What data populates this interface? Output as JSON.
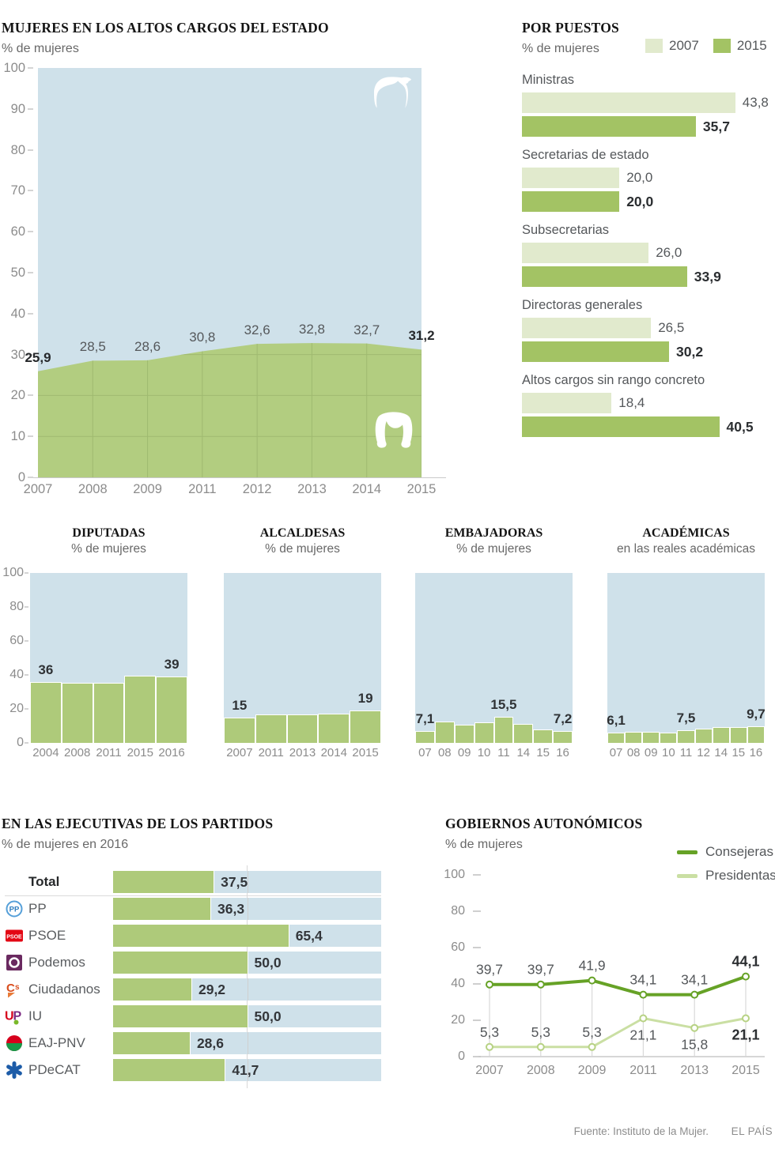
{
  "chart_data": [
    {
      "id": "altos_cargos",
      "type": "area",
      "title": "MUJERES EN LOS ALTOS CARGOS DEL ESTADO",
      "subtitle": "% de mujeres",
      "categories": [
        "2007",
        "2008",
        "2009",
        "2011",
        "2012",
        "2013",
        "2014",
        "2015"
      ],
      "values": [
        25.9,
        28.5,
        28.6,
        30.8,
        32.6,
        32.8,
        32.7,
        31.2
      ],
      "labels": [
        "25,9",
        "28,5",
        "28,6",
        "30,8",
        "32,6",
        "32,8",
        "32,7",
        "31,2"
      ],
      "bold_labels": [
        0,
        7
      ],
      "ylim": [
        0,
        100
      ],
      "yticks": [
        0,
        10,
        20,
        30,
        40,
        50,
        60,
        70,
        80,
        90,
        100
      ],
      "grid": true
    },
    {
      "id": "por_puestos",
      "type": "bar",
      "title": "POR PUESTOS",
      "subtitle": "% de mujeres",
      "legend": [
        {
          "label": "2007",
          "color": "#e1eacd"
        },
        {
          "label": "2015",
          "color": "#a3c364"
        }
      ],
      "categories": [
        "Ministras",
        "Secretarias de estado",
        "Subsecretarias",
        "Directoras generales",
        "Altos cargos sin rango concreto"
      ],
      "series": [
        {
          "name": "2007",
          "values": [
            43.8,
            20.0,
            26.0,
            26.5,
            18.4
          ],
          "labels": [
            "43,8",
            "20,0",
            "26,0",
            "26,5",
            "18,4"
          ]
        },
        {
          "name": "2015",
          "values": [
            35.7,
            20.0,
            33.9,
            30.2,
            40.5
          ],
          "labels": [
            "35,7",
            "20,0",
            "33,9",
            "30,2",
            "40,5"
          ]
        }
      ]
    },
    {
      "id": "diputadas",
      "type": "bar",
      "title": "DIPUTADAS",
      "subtitle": "% de mujeres",
      "categories": [
        "2004",
        "2008",
        "2011",
        "2015",
        "2016"
      ],
      "values": [
        36,
        35.5,
        35.3,
        39.5,
        39
      ],
      "value_labels": [
        {
          "i": 0,
          "text": "36"
        },
        {
          "i": 4,
          "text": "39"
        }
      ],
      "ylim": [
        0,
        100
      ],
      "yticks": [
        0,
        20,
        40,
        60,
        80,
        100
      ],
      "show_y_axis": true
    },
    {
      "id": "alcaldesas",
      "type": "bar",
      "title": "ALCALDESAS",
      "subtitle": "% de mujeres",
      "categories": [
        "2007",
        "2011",
        "2013",
        "2014",
        "2015"
      ],
      "values": [
        15,
        16.8,
        17,
        17.3,
        19
      ],
      "value_labels": [
        {
          "i": 0,
          "text": "15"
        },
        {
          "i": 4,
          "text": "19"
        }
      ],
      "ylim": [
        0,
        100
      ],
      "show_y_axis": false
    },
    {
      "id": "embajadoras",
      "type": "bar",
      "title": "EMBAJADORAS",
      "subtitle": "% de mujeres",
      "categories": [
        "07",
        "08",
        "09",
        "10",
        "11",
        "14",
        "15",
        "16"
      ],
      "values": [
        7.1,
        12.5,
        10.5,
        12.3,
        15.5,
        11,
        8,
        7.2
      ],
      "value_labels": [
        {
          "i": 0,
          "text": "7,1"
        },
        {
          "i": 4,
          "text": "15,5"
        },
        {
          "i": 7,
          "text": "7,2"
        }
      ],
      "ylim": [
        0,
        100
      ],
      "show_y_axis": false
    },
    {
      "id": "academicas",
      "type": "bar",
      "title": "ACADÉMICAS",
      "subtitle": "en las reales académicas",
      "categories": [
        "07",
        "08",
        "09",
        "10",
        "11",
        "12",
        "14",
        "15",
        "16"
      ],
      "values": [
        6.1,
        6.5,
        6.6,
        6,
        7.5,
        8.5,
        9.2,
        9.5,
        9.7
      ],
      "value_labels": [
        {
          "i": 0,
          "text": "6,1"
        },
        {
          "i": 4,
          "text": "7,5"
        },
        {
          "i": 8,
          "text": "9,7"
        }
      ],
      "ylim": [
        0,
        100
      ],
      "show_y_axis": false
    },
    {
      "id": "ejecutivas",
      "type": "bar",
      "title": "EN LAS EJECUTIVAS DE LOS PARTIDOS",
      "subtitle": "% de mujeres en 2016",
      "xlim": [
        0,
        100
      ],
      "reference_line": 50,
      "rows": [
        {
          "label": "Total",
          "icon": null,
          "value": 37.5,
          "label_text": "37,5",
          "bold_name": true
        },
        {
          "label": "PP",
          "icon": "pp",
          "value": 36.3,
          "label_text": "36,3"
        },
        {
          "label": "PSOE",
          "icon": "psoe",
          "value": 65.4,
          "label_text": "65,4"
        },
        {
          "label": "Podemos",
          "icon": "podemos",
          "value": 50.0,
          "label_text": "50,0"
        },
        {
          "label": "Ciudadanos",
          "icon": "cs",
          "value": 29.2,
          "label_text": "29,2"
        },
        {
          "label": "IU",
          "icon": "iu",
          "value": 50.0,
          "label_text": "50,0"
        },
        {
          "label": "EAJ-PNV",
          "icon": "eajpnv",
          "value": 28.6,
          "label_text": "28,6"
        },
        {
          "label": "PDeCAT",
          "icon": "pdecat",
          "value": 41.7,
          "label_text": "41,7"
        }
      ]
    },
    {
      "id": "gobiernos",
      "type": "line",
      "title": "GOBIERNOS AUTONÓMICOS",
      "subtitle": "% de mujeres",
      "x": [
        "2007",
        "2008",
        "2009",
        "2011",
        "2013",
        "2015"
      ],
      "ylim": [
        0,
        100
      ],
      "yticks": [
        0,
        20,
        40,
        60,
        80,
        100
      ],
      "series": [
        {
          "name": "Consejeras",
          "color": "#66a226",
          "values": [
            39.7,
            39.7,
            41.9,
            34.1,
            34.1,
            44.1
          ],
          "labels": [
            "39,7",
            "39,7",
            "41,9",
            "34,1",
            "34,1",
            "44,1"
          ],
          "label_sides": [
            "above",
            "above",
            "above",
            "above",
            "above",
            "above"
          ],
          "bold_last": true
        },
        {
          "name": "Presidentas",
          "color": "#cadfa3",
          "marker_stroke": "#b7d284",
          "values": [
            5.3,
            5.3,
            5.3,
            21.1,
            15.8,
            21.1
          ],
          "labels": [
            "5,3",
            "5,3",
            "5,3",
            "21,1",
            "15,8",
            "21,1"
          ],
          "label_sides": [
            "above",
            "above",
            "above",
            "below",
            "below",
            "below"
          ],
          "bold_last": true
        }
      ]
    }
  ],
  "footer": {
    "source": "Fuente: Instituto de la Mujer.",
    "credit": "EL PAÍS"
  },
  "colors": {
    "background_blue": "#cfe1ea",
    "area_green": "#b2cd80",
    "grid_green": "#9fba70",
    "bar_green": "#aeca7a",
    "light_2007": "#e1eacd",
    "green_2015": "#a3c364",
    "consejeras": "#66a226",
    "presidentas": "#cadfa3",
    "axis_text": "#8c8c8c",
    "value_text": "#55585b",
    "value_bold": "#2b2e31"
  }
}
